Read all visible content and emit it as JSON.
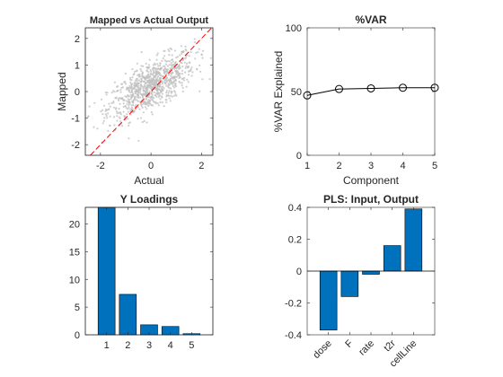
{
  "colors": {
    "bar": "#0072bd",
    "scatter": "#bfbfbf",
    "fit_line": "#ff0000",
    "line": "#000000"
  },
  "chart_data": [
    {
      "type": "scatter",
      "title": "Mapped vs Actual Output",
      "xlabel": "Actual",
      "ylabel": "Mapped",
      "xlim": [
        -2.6,
        2.45
      ],
      "ylim": [
        -2.4,
        2.4
      ],
      "xticks": [
        -2,
        0,
        2
      ],
      "yticks": [
        -2,
        -1,
        0,
        1,
        2
      ],
      "grid": false,
      "reference_line": {
        "style": "dashed",
        "slope": 1,
        "intercept": 0
      },
      "point_cloud": {
        "count": 900,
        "x_center": 0,
        "x_spread": 0.9,
        "relation": "y ≈ 0.5·x + 0.2",
        "y_noise": 0.45
      }
    },
    {
      "type": "line",
      "title": "%VAR",
      "xlabel": "Component",
      "ylabel": "%VAR Explained",
      "x": [
        1,
        2,
        3,
        4,
        5
      ],
      "y": [
        47,
        52,
        52.5,
        53,
        53
      ],
      "xlim": [
        1,
        5
      ],
      "ylim": [
        0,
        100
      ],
      "xticks": [
        1,
        2,
        3,
        4,
        5
      ],
      "yticks": [
        0,
        50,
        100
      ],
      "marker": "open-circle",
      "grid": false
    },
    {
      "type": "bar",
      "title": "Y Loadings",
      "categories": [
        "1",
        "2",
        "3",
        "4",
        "5"
      ],
      "values": [
        23,
        7.3,
        1.8,
        1.5,
        0.2
      ],
      "ylim": [
        0,
        23
      ],
      "yticks": [
        0,
        5,
        10,
        15,
        20
      ],
      "grid": false
    },
    {
      "type": "bar",
      "title": "PLS: Input, Output",
      "categories": [
        "dose",
        "F",
        "rate",
        "t2r",
        "cellLine"
      ],
      "values": [
        -0.37,
        -0.16,
        -0.02,
        0.16,
        0.39
      ],
      "ylim": [
        -0.4,
        0.4
      ],
      "yticks": [
        -0.4,
        -0.2,
        0,
        0.2,
        0.4
      ],
      "yticklabels": [
        "-0.4",
        "-0.2",
        "0",
        "0.2",
        "0.4"
      ],
      "xtick_rotation": 45,
      "grid": false
    }
  ]
}
